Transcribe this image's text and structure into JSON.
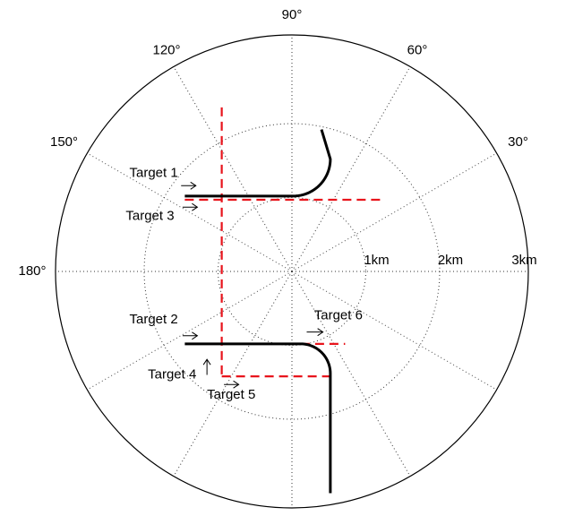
{
  "chart_data": {
    "type": "polar",
    "radial_unit": "km",
    "r_max": 3.2,
    "grid": true,
    "radial_ticks": [
      {
        "r": 1,
        "label": "1km"
      },
      {
        "r": 2,
        "label": "2km"
      },
      {
        "r": 3,
        "label": "3km"
      }
    ],
    "angle_ticks": [
      {
        "deg": 90,
        "label": "90°"
      },
      {
        "deg": 60,
        "label": "60°"
      },
      {
        "deg": 120,
        "label": "120°"
      },
      {
        "deg": 30,
        "label": "30°"
      },
      {
        "deg": 150,
        "label": "150°"
      },
      {
        "deg": 180,
        "label": "180°"
      }
    ],
    "grid_circle_radii": [
      1,
      2
    ],
    "grid_spoke_angles": [
      30,
      60,
      90,
      120,
      150,
      180,
      210,
      240,
      270,
      300,
      330,
      360
    ],
    "own_paths": [
      {
        "segments": [
          {
            "type": "line",
            "from": [
              -1.45,
              1.02
            ],
            "to": [
              0.02,
              1.02
            ]
          },
          {
            "type": "arc",
            "center": [
              0.02,
              1.52
            ],
            "radius": 0.5,
            "start_deg": 270,
            "end_deg": 360
          },
          {
            "type": "line",
            "from": [
              0.52,
              1.52
            ],
            "to": [
              0.4,
              1.92
            ]
          }
        ]
      },
      {
        "segments": [
          {
            "type": "line",
            "from": [
              -1.45,
              -0.98
            ],
            "to": [
              0.12,
              -0.98
            ]
          },
          {
            "type": "arc",
            "center": [
              0.12,
              -1.38
            ],
            "radius": 0.4,
            "start_deg": 90,
            "end_deg": 0
          },
          {
            "type": "line",
            "from": [
              0.52,
              -1.38
            ],
            "to": [
              0.52,
              -3.0
            ]
          }
        ]
      }
    ],
    "target_lines": [
      {
        "from": [
          -0.95,
          2.22
        ],
        "to": [
          -0.95,
          -1.42
        ]
      },
      {
        "from": [
          -1.45,
          0.97
        ],
        "to": [
          1.2,
          0.97
        ]
      },
      {
        "from": [
          0.12,
          -0.98
        ],
        "to": [
          0.72,
          -0.98
        ]
      },
      {
        "from": [
          -0.95,
          -1.42
        ],
        "to": [
          0.52,
          -1.42
        ]
      }
    ],
    "annotations": [
      {
        "text": "Target 1",
        "x": -2.2,
        "y": 1.28
      },
      {
        "text": "Target 3",
        "x": -2.25,
        "y": 0.7
      },
      {
        "text": "Target 2",
        "x": -2.2,
        "y": -0.7
      },
      {
        "text": "Target 4",
        "x": -1.95,
        "y": -1.45
      },
      {
        "text": "Target 5",
        "x": -1.15,
        "y": -1.72
      },
      {
        "text": "Target 6",
        "x": 0.3,
        "y": -0.65
      }
    ],
    "arrows": [
      {
        "from": [
          -1.5,
          1.16
        ],
        "to": [
          -1.3,
          1.16
        ],
        "dir": "right"
      },
      {
        "from": [
          -1.48,
          0.87
        ],
        "to": [
          -1.28,
          0.87
        ],
        "dir": "right"
      },
      {
        "from": [
          -1.48,
          -0.87
        ],
        "to": [
          -1.28,
          -0.87
        ],
        "dir": "right"
      },
      {
        "from": [
          -1.15,
          -1.4
        ],
        "to": [
          -1.15,
          -1.19
        ],
        "dir": "up"
      },
      {
        "from": [
          -0.92,
          -1.53
        ],
        "to": [
          -0.72,
          -1.53
        ],
        "dir": "right"
      },
      {
        "from": [
          0.2,
          -0.82
        ],
        "to": [
          0.42,
          -0.82
        ],
        "dir": "right"
      }
    ],
    "colors": {
      "path": "#000000",
      "target": "#e8141c",
      "grid": "#333333",
      "text": "#000000"
    }
  }
}
